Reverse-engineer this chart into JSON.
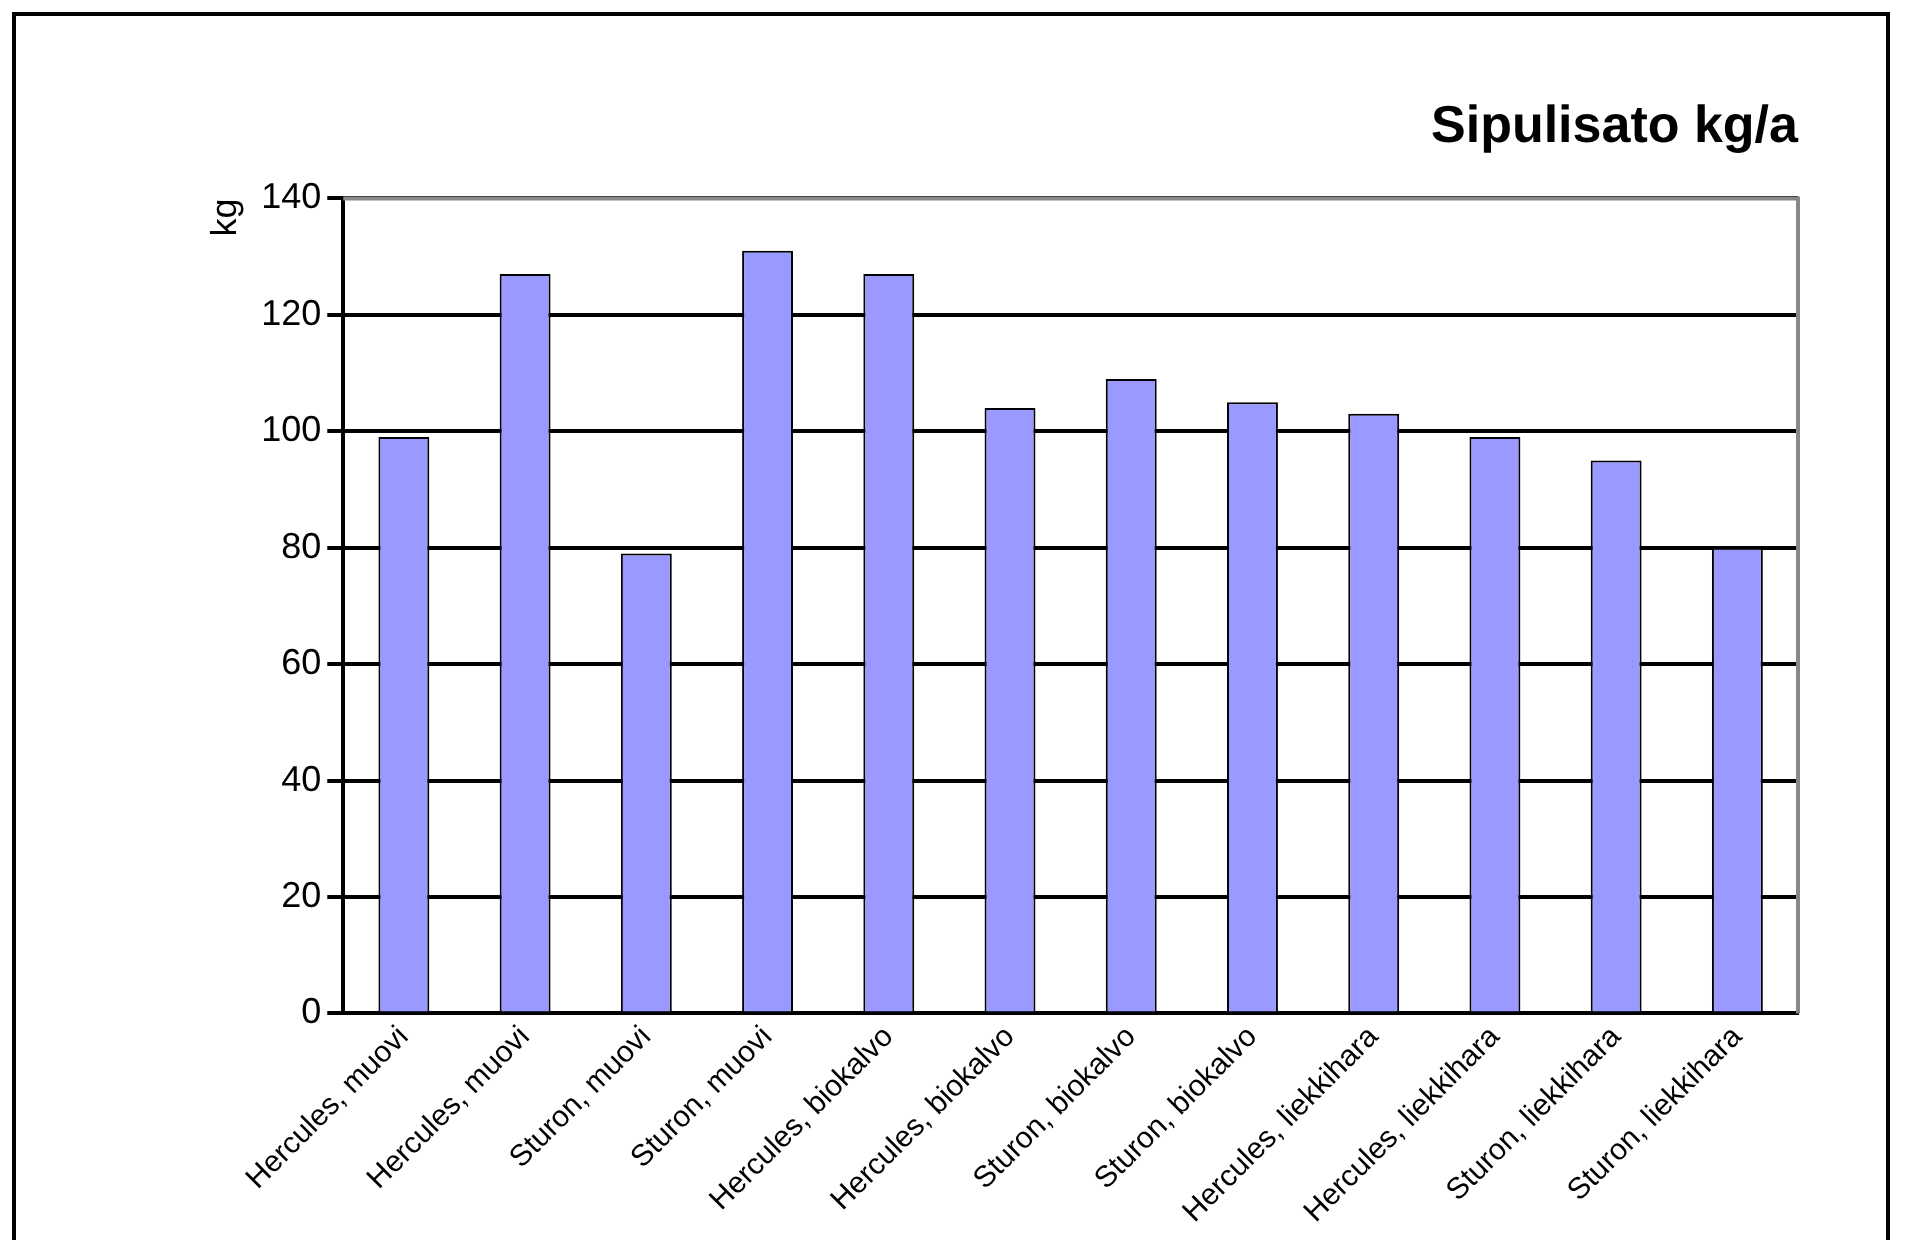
{
  "chart_data": {
    "type": "bar",
    "title": "Sipulisato kg/a",
    "ylabel": "kg",
    "categories": [
      "Hercules, muovi",
      "Hercules, muovi",
      "Sturon, muovi",
      "Sturon, muovi",
      "Hercules, biokalvo",
      "Hercules, biokalvo",
      "Sturon, biokalvo",
      "Sturon, biokalvo",
      "Hercules, liekkihara",
      "Hercules, liekkihara",
      "Sturon, liekkihara",
      "Sturon, liekkihara"
    ],
    "values": [
      99,
      127,
      79,
      131,
      127,
      104,
      109,
      105,
      103,
      99,
      95,
      80
    ],
    "color": "#9999ff",
    "ylim": [
      0,
      140
    ],
    "yticks": [
      0,
      20,
      40,
      60,
      80,
      100,
      120,
      140
    ],
    "grid": "y",
    "legend": false
  }
}
